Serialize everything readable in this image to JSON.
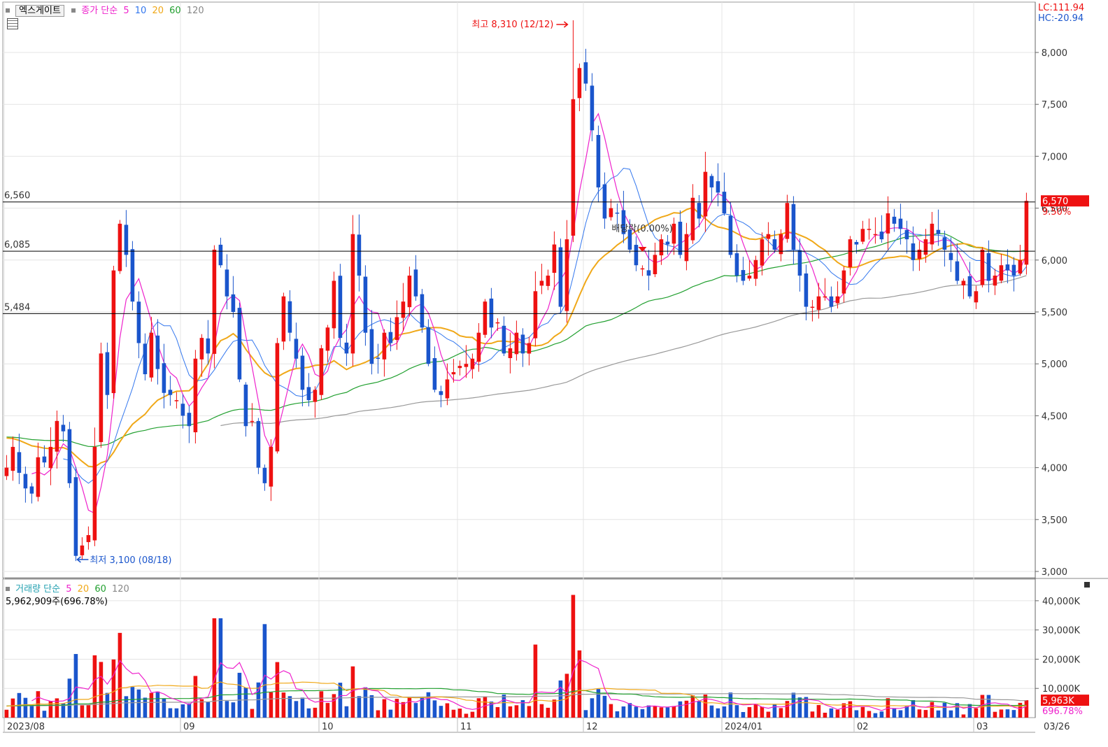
{
  "stock_name": "엑스게이트",
  "price_legend": {
    "label": "종가 단순",
    "p5": "5",
    "p10": "10",
    "p20": "20",
    "p60": "60",
    "p120": "120"
  },
  "volume_legend": {
    "label": "거래량 단순",
    "p5": "5",
    "p20": "20",
    "p60": "60",
    "p120": "120"
  },
  "volume_info": "5,962,909주(696.78%)",
  "lc": "LC:111.94",
  "hc": "HC:-20.94",
  "high_annotation": "최고 8,310 (12/12)",
  "low_annotation": "최저 3,100 (08/18)",
  "dividend_label": "배당락(0.00%)",
  "current_price_tag": "6,570",
  "current_change_tag": "9.50%",
  "current_volume_tag": "5,963K",
  "current_volume_pct_tag": "696.78%",
  "end_date_label": "03/26",
  "colors": {
    "up": "#ee1111",
    "down": "#1a55cc",
    "ma5": "#ee22cc",
    "ma10": "#3377ee",
    "ma20": "#f0a818",
    "ma60": "#22a030",
    "ma120": "#999999"
  },
  "chart_data": [
    {
      "type": "candlestick",
      "title": "",
      "ylim": [
        3000,
        8300
      ],
      "yticks": [
        "8,000",
        "7,500",
        "7,000",
        "6,500",
        "6,000",
        "5,500",
        "5,000",
        "4,500",
        "4,000",
        "3,500",
        "3,000"
      ],
      "x_labels": [
        "2023/08",
        "09",
        "10",
        "11",
        "12",
        "2024/01",
        "02",
        "03"
      ],
      "horizontal_lines": [
        {
          "label": "6,560",
          "value": 6560
        },
        {
          "label": "6,085",
          "value": 6085
        },
        {
          "label": "5,484",
          "value": 5484
        }
      ],
      "series": [
        "5",
        "10",
        "20",
        "60",
        "120"
      ],
      "close": [
        4000,
        4200,
        3950,
        3800,
        3750,
        4100,
        4050,
        4200,
        4450,
        4350,
        3850,
        3150,
        3250,
        3350,
        4200,
        5100,
        4700,
        5900,
        6350,
        6050,
        5600,
        5200,
        4900,
        5300,
        4950,
        4720,
        4700,
        4650,
        4500,
        4400,
        5050,
        5250,
        5100,
        6100,
        5950,
        5650,
        5500,
        4850,
        4400,
        4450,
        4000,
        3850,
        4200,
        5200,
        5650,
        5300,
        5050,
        4750,
        4650,
        4750,
        5150,
        5350,
        5800,
        5250,
        5100,
        6250,
        5850,
        5300,
        5000,
        5050,
        5300,
        5200,
        5450,
        5600,
        5850,
        5650,
        5350,
        5000,
        4750,
        4700,
        4850,
        4920,
        4980,
        5000,
        5050,
        5300,
        5600,
        5350,
        5400,
        5100,
        5150,
        5300,
        5100,
        5200,
        5700,
        5800,
        5850,
        6150,
        5550,
        6200,
        7550,
        7850,
        7700,
        7250,
        6700,
        6400,
        6500,
        6450,
        6250,
        6100,
        5950,
        5920,
        5850,
        6050,
        6200,
        6150,
        6350,
        6050,
        6250,
        6600,
        6400,
        6850,
        6700,
        6650,
        6450,
        6050,
        5850,
        5800,
        5850,
        6000,
        6200,
        6250,
        6100,
        6250,
        6550,
        6100,
        5850,
        5550,
        5550,
        5650,
        5650,
        5550,
        5650,
        5900,
        6200,
        6150,
        6300,
        6300,
        6250,
        6200,
        6450,
        6350,
        6300,
        6200,
        6000,
        6100,
        6200,
        6350,
        6250,
        6100,
        6000,
        5800,
        5800,
        5650,
        5700,
        6100,
        5800,
        5850,
        5950,
        5900,
        5850,
        6000,
        6570
      ],
      "volume_unit": "K",
      "volume_yticks": [
        "40,000K",
        "30,000K",
        "20,000K",
        "10,000K"
      ],
      "volume_ylim": [
        0,
        45000
      ]
    }
  ]
}
